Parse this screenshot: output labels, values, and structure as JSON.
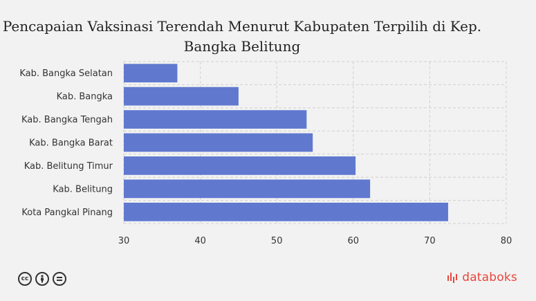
{
  "brand": {
    "name": "databoks",
    "color": "#e8463c"
  },
  "license_icons": [
    "cc-icon",
    "by-icon",
    "nd-icon"
  ],
  "chart_data": {
    "type": "bar",
    "orientation": "horizontal",
    "title": "Pencapaian Vaksinasi Terendah Menurut Kabupaten Terpilih di Kep.\nBangka Belitung",
    "xlabel": "",
    "ylabel": "",
    "categories": [
      "Kab. Bangka Selatan",
      "Kab. Bangka",
      "Kab. Bangka Tengah",
      "Kab. Bangka Barat",
      "Kab. Belitung Timur",
      "Kab. Belitung",
      "Kota Pangkal Pinang"
    ],
    "values": [
      37.0,
      45.0,
      53.9,
      54.7,
      60.3,
      62.2,
      72.4
    ],
    "xlim": [
      30,
      80
    ],
    "xticks": [
      30,
      40,
      50,
      60,
      70,
      80
    ],
    "grid": true,
    "bar_color": "#6079cf"
  }
}
